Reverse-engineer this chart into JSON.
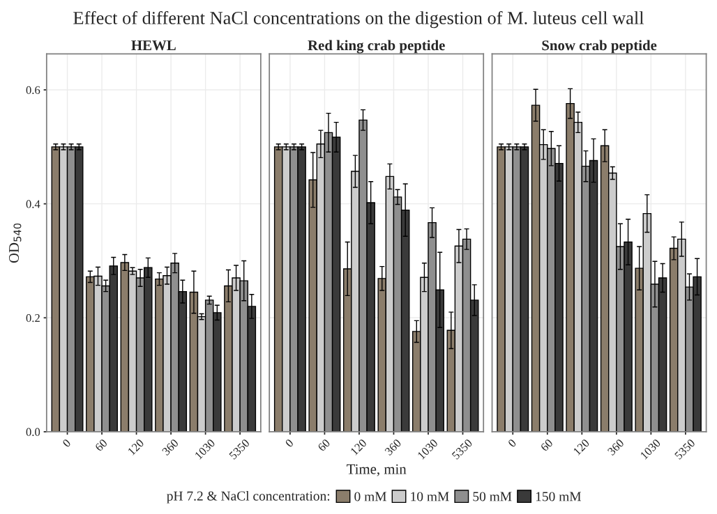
{
  "chart_data": [
    {
      "type": "bar",
      "title": "HEWL",
      "ylabel": "OD$_{540}$",
      "categories": [
        "0",
        "60",
        "120",
        "360",
        "1030",
        "5350"
      ],
      "ylim": [
        0,
        0.663
      ],
      "yticks": [
        {
          "value": 0,
          "label": "0.0"
        },
        0.2,
        0.4,
        0.6
      ],
      "grid": true,
      "series": [
        {
          "color": "#8b7d6b",
          "values": [
            0.5,
            0.272,
            0.297,
            0.268,
            0.245,
            0.256
          ],
          "errors": [
            0.005,
            0.01,
            0.014,
            0.011,
            0.037,
            0.028
          ]
        },
        {
          "color": "#cccccc",
          "values": [
            0.5,
            0.273,
            0.282,
            0.274,
            0.202,
            0.27
          ],
          "errors": [
            0.005,
            0.016,
            0.006,
            0.015,
            0.005,
            0.022
          ]
        },
        {
          "color": "#8f8f8f",
          "values": [
            0.5,
            0.256,
            0.27,
            0.296,
            0.231,
            0.265
          ],
          "errors": [
            0.005,
            0.01,
            0.015,
            0.017,
            0.007,
            0.035
          ]
        },
        {
          "color": "#3a3a3a",
          "values": [
            0.5,
            0.291,
            0.288,
            0.246,
            0.209,
            0.22
          ],
          "errors": [
            0.005,
            0.015,
            0.017,
            0.02,
            0.013,
            0.021
          ]
        }
      ]
    },
    {
      "type": "bar",
      "title": "Red king crab peptide",
      "xlabel": "Time, min",
      "legend_title": "pH 7.2 & NaCl concentration:",
      "categories": [
        "0",
        "60",
        "120",
        "360",
        "1030",
        "5350"
      ],
      "ylim": [
        0,
        0.663
      ],
      "yticks": [
        0,
        0.2,
        0.4,
        0.6
      ],
      "tick_labels": "x",
      "grid": true,
      "legend": "bottom",
      "series": [
        {
          "name": "0 mM",
          "color": "#8b7d6b",
          "values": [
            0.5,
            0.442,
            0.286,
            0.269,
            0.176,
            0.178
          ],
          "errors": [
            0.005,
            0.048,
            0.047,
            0.021,
            0.019,
            0.032
          ]
        },
        {
          "name": "10 mM",
          "color": "#cccccc",
          "values": [
            0.5,
            0.505,
            0.457,
            0.448,
            0.271,
            0.326
          ],
          "errors": [
            0.005,
            0.024,
            0.028,
            0.022,
            0.025,
            0.029
          ]
        },
        {
          "name": "50 mM",
          "color": "#8f8f8f",
          "values": [
            0.5,
            0.525,
            0.547,
            0.412,
            0.367,
            0.338
          ],
          "errors": [
            0.005,
            0.034,
            0.018,
            0.013,
            0.026,
            0.018
          ]
        },
        {
          "name": "150 mM",
          "color": "#3a3a3a",
          "values": [
            0.5,
            0.517,
            0.402,
            0.389,
            0.249,
            0.231
          ],
          "errors": [
            0.005,
            0.026,
            0.037,
            0.046,
            0.066,
            0.027
          ]
        }
      ]
    },
    {
      "type": "bar",
      "title": "Snow crab peptide",
      "categories": [
        "0",
        "60",
        "120",
        "360",
        "1030",
        "5350"
      ],
      "ylim": [
        0,
        0.663
      ],
      "yticks": [
        0,
        0.2,
        0.4,
        0.6
      ],
      "tick_labels": "x",
      "grid": true,
      "series": [
        {
          "color": "#8b7d6b",
          "values": [
            0.5,
            0.573,
            0.576,
            0.502,
            0.287,
            0.322
          ],
          "errors": [
            0.005,
            0.028,
            0.026,
            0.028,
            0.038,
            0.02
          ]
        },
        {
          "color": "#cccccc",
          "values": [
            0.5,
            0.504,
            0.543,
            0.454,
            0.383,
            0.338
          ],
          "errors": [
            0.005,
            0.026,
            0.018,
            0.011,
            0.033,
            0.03
          ]
        },
        {
          "color": "#8f8f8f",
          "values": [
            0.5,
            0.497,
            0.466,
            0.325,
            0.259,
            0.254
          ],
          "errors": [
            0.005,
            0.03,
            0.027,
            0.04,
            0.04,
            0.023
          ]
        },
        {
          "color": "#3a3a3a",
          "values": [
            0.5,
            0.471,
            0.476,
            0.333,
            0.27,
            0.272
          ],
          "errors": [
            0.005,
            0.031,
            0.038,
            0.04,
            0.025,
            0.032
          ]
        }
      ]
    },
    {
      "type": "other",
      "title": "Effect of different NaCl concentrations on the digestion of M. luteus cell wall"
    }
  ]
}
